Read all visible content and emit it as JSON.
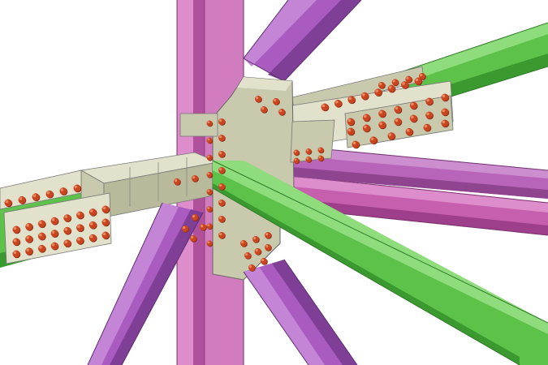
{
  "scene": {
    "subject": "steel-connection-3d-model",
    "colors": {
      "background": "#ffffff",
      "column": "#c65fae",
      "column_light": "#dd8ccc",
      "column_dark": "#9d3f8a",
      "brace": "#a95bc0",
      "brace_light": "#c485d6",
      "brace_dark": "#7f3f96",
      "beam_green": "#5cc24a",
      "beam_green_light": "#8fdc7c",
      "beam_green_dark": "#3a9a30",
      "plate": "#c9c9ad",
      "plate_light": "#e2e2cc",
      "plate_dark": "#9e9e82",
      "bolt": "#c94520",
      "bolt_highlight": "#e9895e",
      "bolt_shadow": "#8a2a12",
      "edge": "#555555"
    }
  }
}
